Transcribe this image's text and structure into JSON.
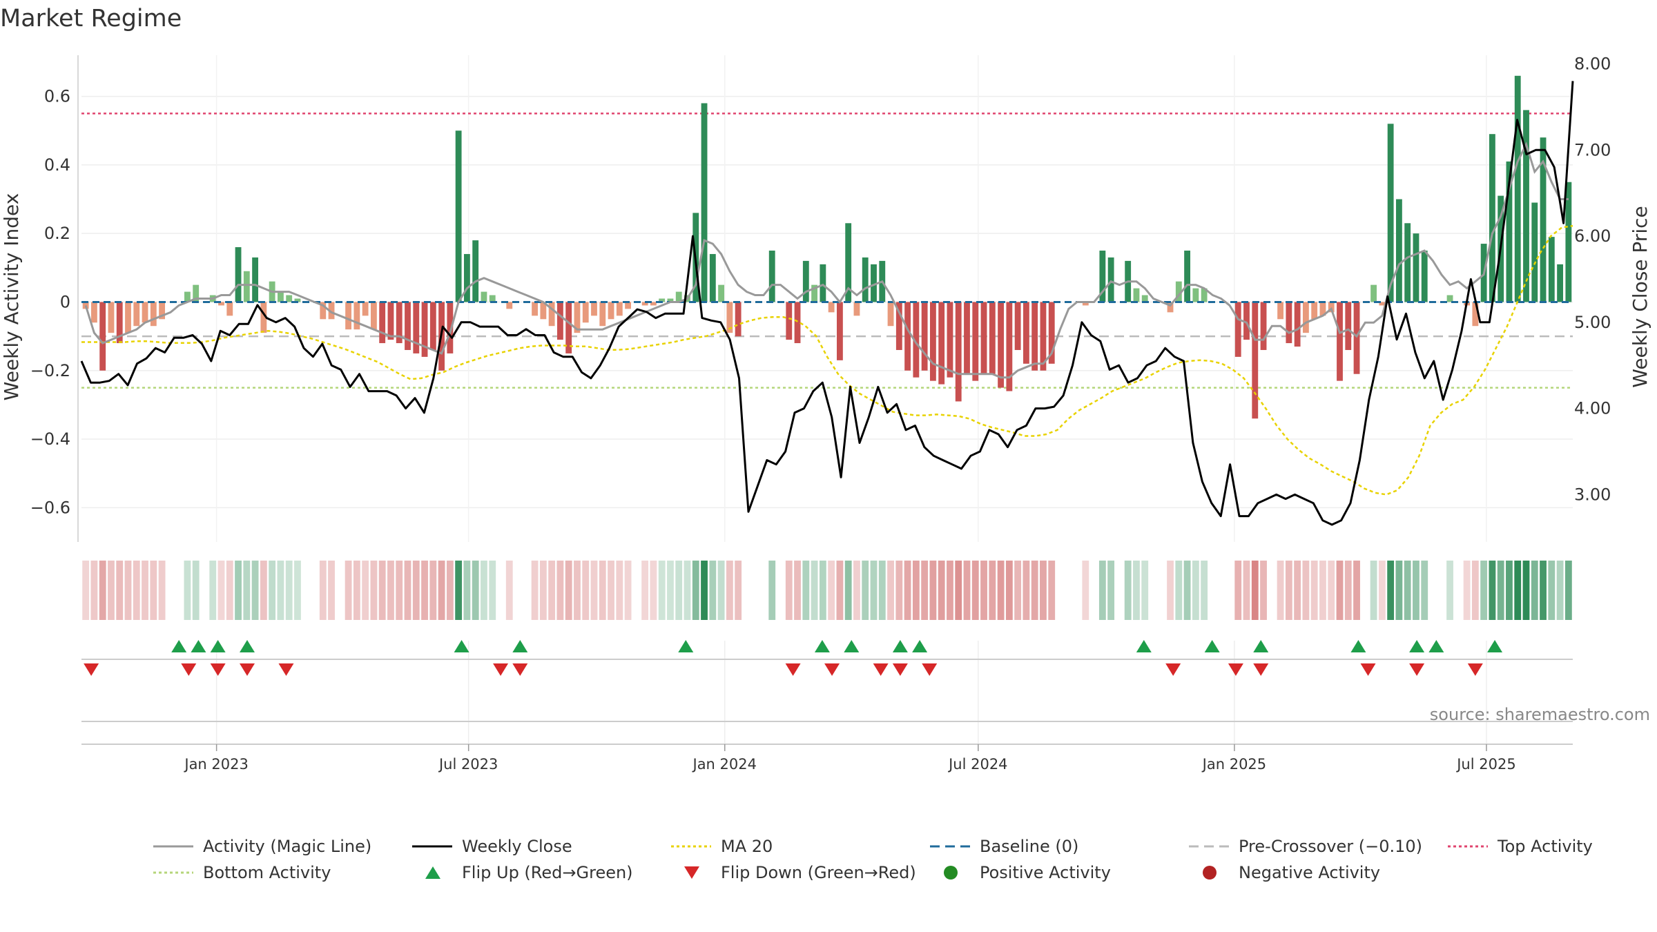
{
  "chart_data": {
    "type": "bar",
    "title": "Market Regime",
    "source": "source: sharemaestro.com",
    "ylabel_left": "Weekly Activity Index",
    "ylabel_right": "Weekly Close Price",
    "ylim_left": [
      -0.7,
      0.72
    ],
    "ylim_right": [
      2.45,
      8.1
    ],
    "yticks_left": [
      "0.6",
      "0.4",
      "0.2",
      "0",
      "−0.2",
      "−0.4",
      "−0.6"
    ],
    "yticks_left_values": [
      0.6,
      0.4,
      0.2,
      0,
      -0.2,
      -0.4,
      -0.6
    ],
    "yticks_right": [
      "8.00",
      "7.00",
      "6.00",
      "5.00",
      "4.00",
      "3.00"
    ],
    "yticks_right_values": [
      8,
      7,
      6,
      5,
      4,
      3
    ],
    "x_start": "2022-09-26",
    "x_end": "2025-09-01",
    "xticks": [
      {
        "date": "2023-01-01",
        "label": "Jan 2023"
      },
      {
        "date": "2023-07-01",
        "label": "Jul 2023"
      },
      {
        "date": "2024-01-01",
        "label": "Jan 2024"
      },
      {
        "date": "2024-07-01",
        "label": "Jul 2024"
      },
      {
        "date": "2025-01-01",
        "label": "Jan 2025"
      },
      {
        "date": "2025-07-01",
        "label": "Jul 2025"
      }
    ],
    "thresholds": {
      "top": 0.55,
      "bottom": -0.25,
      "pre_crossover": -0.1,
      "baseline": 0
    },
    "activity": [
      -0.02,
      -0.06,
      -0.2,
      -0.09,
      -0.12,
      -0.09,
      -0.07,
      -0.06,
      -0.07,
      -0.05,
      0,
      0,
      0.03,
      0.05,
      0,
      0.02,
      -0.01,
      -0.04,
      0.16,
      0.09,
      0.13,
      -0.09,
      0.06,
      0.03,
      0.02,
      0.01,
      0,
      0,
      -0.05,
      -0.05,
      0,
      -0.08,
      -0.08,
      -0.04,
      -0.08,
      -0.12,
      -0.11,
      -0.12,
      -0.14,
      -0.15,
      -0.16,
      -0.14,
      -0.2,
      -0.15,
      0.5,
      0.14,
      0.18,
      0.03,
      0.02,
      0,
      -0.02,
      0,
      0,
      -0.04,
      -0.05,
      -0.07,
      -0.11,
      -0.15,
      -0.09,
      -0.06,
      -0.04,
      -0.07,
      -0.05,
      -0.04,
      -0.02,
      0,
      -0.01,
      -0.01,
      0.01,
      0.01,
      0.03,
      0.02,
      0.26,
      0.58,
      0.14,
      0.05,
      -0.09,
      -0.1,
      0,
      0,
      0,
      0.15,
      0,
      -0.11,
      -0.12,
      0.12,
      0.05,
      0.11,
      -0.03,
      -0.17,
      0.23,
      -0.04,
      0.13,
      0.11,
      0.12,
      -0.07,
      -0.14,
      -0.2,
      -0.22,
      -0.2,
      -0.23,
      -0.24,
      -0.22,
      -0.29,
      -0.21,
      -0.23,
      -0.21,
      -0.21,
      -0.25,
      -0.26,
      -0.14,
      -0.18,
      -0.2,
      -0.2,
      -0.18,
      0,
      0,
      0,
      -0.01,
      0,
      0.15,
      0.13,
      0,
      0.12,
      0.04,
      0.02,
      0,
      0,
      -0.03,
      0.06,
      0.15,
      0.04,
      0.04,
      0,
      0,
      0,
      -0.16,
      -0.11,
      -0.34,
      -0.14,
      0,
      -0.05,
      -0.12,
      -0.13,
      -0.09,
      -0.05,
      -0.04,
      -0.03,
      -0.23,
      -0.14,
      -0.21,
      0,
      0.05,
      -0.01,
      0.52,
      0.3,
      0.23,
      0.2,
      0.15,
      0,
      0,
      0.02,
      0,
      -0.01,
      -0.07,
      0.17,
      0.49,
      0.31,
      0.41,
      0.66,
      0.56,
      0.29,
      0.48,
      0.19,
      0.11,
      0.35
    ],
    "magic_line": [
      -0.01,
      -0.09,
      -0.12,
      -0.11,
      -0.1,
      -0.09,
      -0.08,
      -0.06,
      -0.05,
      -0.04,
      -0.03,
      -0.01,
      0,
      0.01,
      0.01,
      0.01,
      0.02,
      0.02,
      0.05,
      0.05,
      0.05,
      0.04,
      0.03,
      0.03,
      0.03,
      0.02,
      0.01,
      0,
      -0.01,
      -0.03,
      -0.04,
      -0.05,
      -0.06,
      -0.07,
      -0.08,
      -0.09,
      -0.1,
      -0.1,
      -0.11,
      -0.12,
      -0.13,
      -0.14,
      -0.15,
      -0.09,
      0,
      0.04,
      0.06,
      0.07,
      0.06,
      0.05,
      0.04,
      0.03,
      0.02,
      0.01,
      0,
      -0.02,
      -0.04,
      -0.06,
      -0.08,
      -0.08,
      -0.08,
      -0.08,
      -0.07,
      -0.06,
      -0.05,
      -0.04,
      -0.03,
      -0.02,
      -0.01,
      0,
      0,
      0.01,
      0.05,
      0.18,
      0.17,
      0.14,
      0.09,
      0.05,
      0.03,
      0.02,
      0.02,
      0.05,
      0.05,
      0.03,
      0.01,
      0.03,
      0.04,
      0.05,
      0.03,
      0,
      0.04,
      0.02,
      0.04,
      0.05,
      0.06,
      0.02,
      -0.03,
      -0.08,
      -0.12,
      -0.15,
      -0.18,
      -0.19,
      -0.2,
      -0.21,
      -0.21,
      -0.21,
      -0.21,
      -0.21,
      -0.22,
      -0.22,
      -0.2,
      -0.19,
      -0.18,
      -0.18,
      -0.15,
      -0.08,
      -0.02,
      0,
      0,
      0,
      0.03,
      0.06,
      0.05,
      0.06,
      0.06,
      0.04,
      0.01,
      0,
      -0.01,
      0.02,
      0.05,
      0.05,
      0.04,
      0.02,
      0.01,
      -0.01,
      -0.05,
      -0.06,
      -0.11,
      -0.11,
      -0.07,
      -0.07,
      -0.09,
      -0.08,
      -0.06,
      -0.05,
      -0.04,
      -0.02,
      -0.09,
      -0.08,
      -0.1,
      -0.06,
      -0.06,
      -0.04,
      0.05,
      0.11,
      0.13,
      0.14,
      0.15,
      0.12,
      0.08,
      0.05,
      0.06,
      0.04,
      0.06,
      0.08,
      0.2,
      0.25,
      0.33,
      0.41,
      0.46,
      0.38,
      0.41,
      0.35,
      0.3,
      0.3
    ],
    "weekly_close": [
      4.55,
      4.3,
      4.3,
      4.32,
      4.4,
      4.27,
      4.52,
      4.58,
      4.7,
      4.65,
      4.82,
      4.82,
      4.85,
      4.75,
      4.55,
      4.9,
      4.85,
      4.98,
      4.98,
      5.2,
      5.05,
      5.0,
      5.05,
      4.95,
      4.7,
      4.6,
      4.75,
      4.5,
      4.45,
      4.25,
      4.4,
      4.2,
      4.2,
      4.2,
      4.15,
      4.0,
      4.12,
      3.95,
      4.35,
      4.95,
      4.82,
      5.0,
      5.0,
      4.95,
      4.95,
      4.95,
      4.85,
      4.85,
      4.92,
      4.85,
      4.85,
      4.65,
      4.6,
      4.6,
      4.42,
      4.35,
      4.5,
      4.7,
      4.95,
      5.05,
      5.15,
      5.12,
      5.05,
      5.1,
      5.1,
      5.1,
      6.0,
      5.05,
      5.02,
      5.0,
      4.8,
      4.35,
      2.8,
      3.1,
      3.4,
      3.35,
      3.5,
      3.95,
      4.0,
      4.2,
      4.3,
      3.9,
      3.2,
      4.25,
      3.6,
      3.9,
      4.25,
      3.95,
      4.05,
      3.75,
      3.8,
      3.55,
      3.45,
      3.4,
      3.35,
      3.3,
      3.45,
      3.5,
      3.75,
      3.7,
      3.55,
      3.75,
      3.8,
      4.0,
      4.0,
      4.02,
      4.15,
      4.5,
      5.0,
      4.85,
      4.78,
      4.45,
      4.5,
      4.3,
      4.35,
      4.5,
      4.55,
      4.7,
      4.6,
      4.55,
      3.6,
      3.15,
      2.9,
      2.75,
      3.35,
      2.75,
      2.75,
      2.9,
      2.95,
      3.0,
      2.95,
      3.0,
      2.95,
      2.9,
      2.7,
      2.65,
      2.7,
      2.9,
      3.4,
      4.1,
      4.6,
      5.3,
      4.8,
      5.1,
      4.65,
      4.35,
      4.55,
      4.1,
      4.45,
      4.9,
      5.5,
      5.0,
      5.0,
      5.7,
      6.5,
      7.35,
      6.95,
      7.0,
      7.0,
      6.8,
      6.15,
      7.8
    ],
    "ma20": [
      4.77,
      4.77,
      4.77,
      4.77,
      4.77,
      4.78,
      4.78,
      4.77,
      4.76,
      4.76,
      4.76,
      4.77,
      4.79,
      4.82,
      4.84,
      4.86,
      4.88,
      4.9,
      4.89,
      4.87,
      4.84,
      4.81,
      4.77,
      4.73,
      4.69,
      4.64,
      4.59,
      4.54,
      4.47,
      4.4,
      4.34,
      4.35,
      4.39,
      4.42,
      4.48,
      4.53,
      4.57,
      4.61,
      4.64,
      4.67,
      4.7,
      4.72,
      4.73,
      4.73,
      4.73,
      4.72,
      4.72,
      4.7,
      4.68,
      4.68,
      4.69,
      4.71,
      4.73,
      4.75,
      4.77,
      4.8,
      4.82,
      4.84,
      4.88,
      4.92,
      4.98,
      5.02,
      5.05,
      5.06,
      5.06,
      5.03,
      4.96,
      4.84,
      4.6,
      4.4,
      4.27,
      4.17,
      4.1,
      4.03,
      3.96,
      3.94,
      3.92,
      3.92,
      3.93,
      3.92,
      3.91,
      3.88,
      3.82,
      3.78,
      3.75,
      3.72,
      3.68,
      3.68,
      3.7,
      3.75,
      3.88,
      3.98,
      4.05,
      4.12,
      4.2,
      4.25,
      4.3,
      4.35,
      4.42,
      4.48,
      4.53,
      4.55,
      4.56,
      4.55,
      4.52,
      4.45,
      4.35,
      4.18,
      4.0,
      3.8,
      3.64,
      3.52,
      3.42,
      3.35,
      3.27,
      3.21,
      3.15,
      3.07,
      3.02,
      3.0,
      3.05,
      3.2,
      3.45,
      3.8,
      3.95,
      4.05,
      4.1,
      4.25,
      4.45,
      4.7,
      4.95,
      5.25,
      5.55,
      5.8,
      6.0,
      6.1,
      6.12
    ],
    "flip_up_dates": [
      "2022-12-05",
      "2022-12-19",
      "2023-01-02",
      "2023-01-23",
      "2023-06-26",
      "2023-08-07",
      "2023-12-04",
      "2024-03-11",
      "2024-04-01",
      "2024-05-06",
      "2024-05-20",
      "2024-10-28",
      "2024-12-16",
      "2025-01-20",
      "2025-03-31",
      "2025-05-12",
      "2025-05-26",
      "2025-07-07"
    ],
    "flip_down_dates": [
      "2022-10-03",
      "2022-12-12",
      "2023-01-02",
      "2023-01-23",
      "2023-02-20",
      "2023-07-24",
      "2023-08-07",
      "2024-02-19",
      "2024-03-18",
      "2024-04-22",
      "2024-05-06",
      "2024-05-27",
      "2024-11-18",
      "2025-01-02",
      "2025-01-20",
      "2025-04-07",
      "2025-05-12",
      "2025-06-23"
    ],
    "colors": {
      "pos_strong": "#2e8b57",
      "pos_light": "#7fc07f",
      "neg_strong": "#c85050",
      "neg_light": "#e89a7c",
      "magic_line": "#999999",
      "weekly_close": "#000000",
      "ma20": "#e8d200",
      "baseline": "#1f6b9b",
      "pre_crossover": "#bbbbbb",
      "top": "#e0446e",
      "bottom": "#b5d67a",
      "flip_up": "#1e9e4a",
      "flip_down": "#d62728",
      "positive_dot": "#238b23",
      "negative_dot": "#b22222"
    },
    "legend": [
      {
        "label": "Activity (Magic Line)",
        "kind": "line",
        "color": "#999999"
      },
      {
        "label": "Weekly Close",
        "kind": "line",
        "color": "#000000"
      },
      {
        "label": "MA 20",
        "kind": "dotted",
        "color": "#e8d200"
      },
      {
        "label": "Baseline (0)",
        "kind": "dashed",
        "color": "#1f6b9b"
      },
      {
        "label": "Pre-Crossover (−0.10)",
        "kind": "dashed",
        "color": "#bbbbbb"
      },
      {
        "label": "Top Activity",
        "kind": "dotted",
        "color": "#e0446e"
      },
      {
        "label": "Bottom Activity",
        "kind": "dotted",
        "color": "#b5d67a"
      },
      {
        "label": "Flip Up (Red→Green)",
        "kind": "tri-up",
        "color": "#1e9e4a"
      },
      {
        "label": "Flip Down (Green→Red)",
        "kind": "tri-down",
        "color": "#d62728"
      },
      {
        "label": "Positive Activity",
        "kind": "dot",
        "color": "#238b23"
      },
      {
        "label": "Negative Activity",
        "kind": "dot",
        "color": "#b22222"
      }
    ]
  }
}
